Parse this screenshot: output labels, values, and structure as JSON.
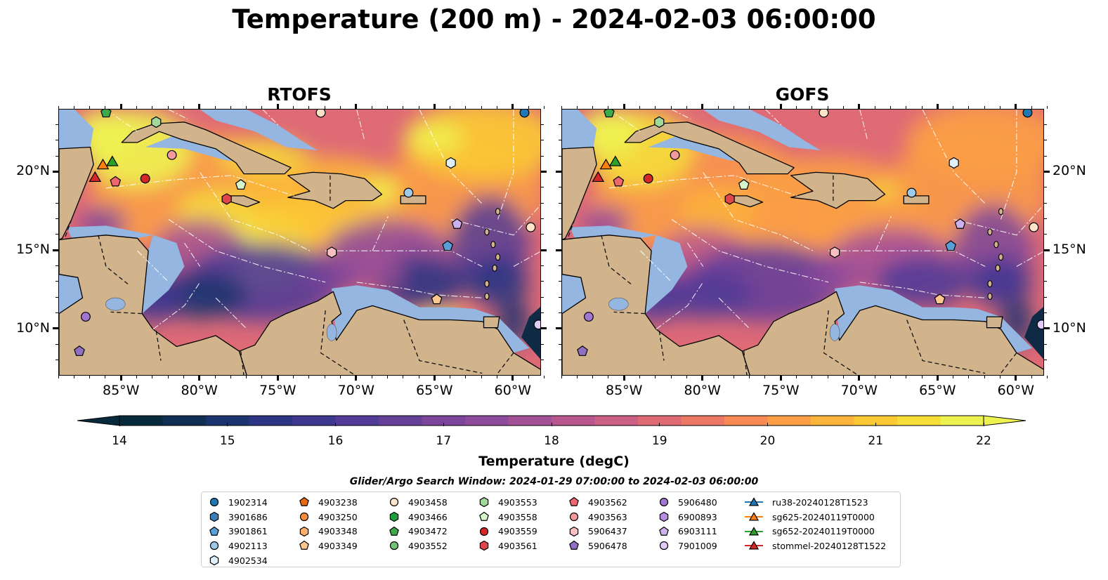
{
  "title": "Temperature (200 m) - 2024-02-03 06:00:00",
  "panels": [
    {
      "title": "RTOFS",
      "model": "rtofs"
    },
    {
      "title": "GOFS",
      "model": "gofs"
    }
  ],
  "map": {
    "lon_range": [
      -89,
      -58.2
    ],
    "lat_range": [
      7,
      24
    ],
    "lon_ticks": [
      {
        "value": -85,
        "label": "85°W"
      },
      {
        "value": -80,
        "label": "80°W"
      },
      {
        "value": -75,
        "label": "75°W"
      },
      {
        "value": -70,
        "label": "70°W"
      },
      {
        "value": -65,
        "label": "65°W"
      },
      {
        "value": -60,
        "label": "60°W"
      }
    ],
    "lat_ticks": [
      {
        "value": 20,
        "label": "20°N"
      },
      {
        "value": 15,
        "label": "15°N"
      },
      {
        "value": 10,
        "label": "10°N"
      }
    ],
    "land_color": "#d2b48c",
    "shelf_color": "#94b6e1",
    "deep_water_color": "#03263a"
  },
  "colorbar": {
    "label": "Temperature (degC)",
    "min": 14,
    "max": 22,
    "ticks": [
      "14",
      "15",
      "16",
      "17",
      "18",
      "19",
      "20",
      "21",
      "22"
    ],
    "colors": [
      "#062a3b",
      "#102f55",
      "#1b3470",
      "#2b3583",
      "#3d3790",
      "#523b96",
      "#663f99",
      "#7b459b",
      "#8e4b9b",
      "#a35196",
      "#b8578e",
      "#cc5f84",
      "#de6a76",
      "#ec7866",
      "#f78a55",
      "#fb9e46",
      "#fcb43a",
      "#fbc933",
      "#f6dd38",
      "#eef251"
    ],
    "extend": "both"
  },
  "search_window": "Glider/Argo Search Window: 2024-01-29 07:00:00 to 2024-02-03 06:00:00",
  "legend": {
    "columns": [
      [
        {
          "label": "1902314",
          "marker": "circle",
          "color": "#1f77b4"
        },
        {
          "label": "3901686",
          "marker": "hexagon",
          "color": "#3b7fb8"
        },
        {
          "label": "3901861",
          "marker": "pentagon",
          "color": "#5aa0d8"
        },
        {
          "label": "4902113",
          "marker": "circle",
          "color": "#9ecae9"
        },
        {
          "label": "4902534",
          "marker": "hexagon",
          "color": "#e0f0fb"
        }
      ],
      [
        {
          "label": "4903238",
          "marker": "pentagon",
          "color": "#e66a10"
        },
        {
          "label": "4903250",
          "marker": "circle",
          "color": "#fd8d3c"
        },
        {
          "label": "4903348",
          "marker": "hexagon",
          "color": "#fdae6b"
        },
        {
          "label": "4903349",
          "marker": "pentagon",
          "color": "#fdc792"
        }
      ],
      [
        {
          "label": "4903458",
          "marker": "circle",
          "color": "#fde3c8"
        },
        {
          "label": "4903466",
          "marker": "hexagon",
          "color": "#1f9e3a"
        },
        {
          "label": "4903472",
          "marker": "pentagon",
          "color": "#3daa4a"
        },
        {
          "label": "4903552",
          "marker": "circle",
          "color": "#74c476"
        }
      ],
      [
        {
          "label": "4903553",
          "marker": "hexagon",
          "color": "#a1d99b"
        },
        {
          "label": "4903558",
          "marker": "pentagon",
          "color": "#d6f5c9"
        },
        {
          "label": "4903559",
          "marker": "circle",
          "color": "#d62728"
        },
        {
          "label": "4903561",
          "marker": "hexagon",
          "color": "#e0474b"
        }
      ],
      [
        {
          "label": "4903562",
          "marker": "pentagon",
          "color": "#ee6670"
        },
        {
          "label": "4903563",
          "marker": "circle",
          "color": "#f4999e"
        },
        {
          "label": "5906437",
          "marker": "hexagon",
          "color": "#f8c0c2"
        },
        {
          "label": "5906478",
          "marker": "pentagon",
          "color": "#9170c4"
        }
      ],
      [
        {
          "label": "5906480",
          "marker": "circle",
          "color": "#a176d0"
        },
        {
          "label": "6900893",
          "marker": "hexagon",
          "color": "#b48ee0"
        },
        {
          "label": "6903111",
          "marker": "pentagon",
          "color": "#cdb0ee"
        },
        {
          "label": "7901009",
          "marker": "circle",
          "color": "#e3cbf7"
        }
      ],
      [
        {
          "label": "ru38-20240128T1523",
          "marker": "triangle-line",
          "color": "#1f77b4"
        },
        {
          "label": "sg625-20240119T0000",
          "marker": "triangle-line",
          "color": "#ff7f0e"
        },
        {
          "label": "sg652-20240119T0000",
          "marker": "triangle-line",
          "color": "#2ca02c"
        },
        {
          "label": "stommel-20240128T1522",
          "marker": "triangle-line",
          "color": "#d62728"
        }
      ]
    ]
  },
  "platforms": [
    {
      "id": "1902314",
      "lon": -59.3,
      "lat": 23.8,
      "marker": "circle",
      "color": "#1f77b4"
    },
    {
      "id": "3901861",
      "lon": -64.2,
      "lat": 15.3,
      "marker": "pentagon",
      "color": "#5aa0d8"
    },
    {
      "id": "4902113",
      "lon": -66.7,
      "lat": 18.7,
      "marker": "circle",
      "color": "#9ecae9"
    },
    {
      "id": "4902534",
      "lon": -64.0,
      "lat": 20.6,
      "marker": "hexagon",
      "color": "#e0f0fb"
    },
    {
      "id": "4903349",
      "lon": -64.9,
      "lat": 11.9,
      "marker": "pentagon",
      "color": "#fdc792"
    },
    {
      "id": "4903458",
      "lon": -58.9,
      "lat": 16.5,
      "marker": "circle",
      "color": "#fde3c8"
    },
    {
      "id": "4903458b",
      "lon": -72.3,
      "lat": 23.8,
      "marker": "circle",
      "color": "#fde3c8"
    },
    {
      "id": "4903472",
      "lon": -86.0,
      "lat": 23.8,
      "marker": "pentagon",
      "color": "#3daa4a"
    },
    {
      "id": "4903553",
      "lon": -82.8,
      "lat": 23.2,
      "marker": "hexagon",
      "color": "#a1d99b"
    },
    {
      "id": "4903558",
      "lon": -77.4,
      "lat": 19.2,
      "marker": "pentagon",
      "color": "#d6f5c9"
    },
    {
      "id": "4903559",
      "lon": -83.5,
      "lat": 19.6,
      "marker": "circle",
      "color": "#d62728"
    },
    {
      "id": "4903561",
      "lon": -78.3,
      "lat": 18.3,
      "marker": "hexagon",
      "color": "#e0474b"
    },
    {
      "id": "4903562",
      "lon": -85.4,
      "lat": 19.4,
      "marker": "pentagon",
      "color": "#ee6670"
    },
    {
      "id": "4903563",
      "lon": -81.8,
      "lat": 21.1,
      "marker": "circle",
      "color": "#f4999e"
    },
    {
      "id": "5906437",
      "lon": -71.6,
      "lat": 14.9,
      "marker": "hexagon",
      "color": "#f8c0c2"
    },
    {
      "id": "5906478",
      "lon": -87.7,
      "lat": 8.6,
      "marker": "pentagon",
      "color": "#9170c4"
    },
    {
      "id": "5906480",
      "lon": -87.3,
      "lat": 10.8,
      "marker": "circle",
      "color": "#a176d0"
    },
    {
      "id": "6903111",
      "lon": -63.6,
      "lat": 16.7,
      "marker": "pentagon",
      "color": "#cdb0ee"
    },
    {
      "id": "7901009",
      "lon": -58.4,
      "lat": 10.3,
      "marker": "circle",
      "color": "#e3cbf7"
    },
    {
      "id": "sg652-20240119T0000",
      "lon": -85.6,
      "lat": 20.7,
      "marker": "triangle",
      "color": "#2ca02c"
    },
    {
      "id": "sg625-20240119T0000",
      "lon": -86.2,
      "lat": 20.5,
      "marker": "triangle",
      "color": "#ff7f0e"
    },
    {
      "id": "stommel-20240128T1522",
      "lon": -86.7,
      "lat": 19.7,
      "marker": "triangle",
      "color": "#d62728"
    }
  ]
}
